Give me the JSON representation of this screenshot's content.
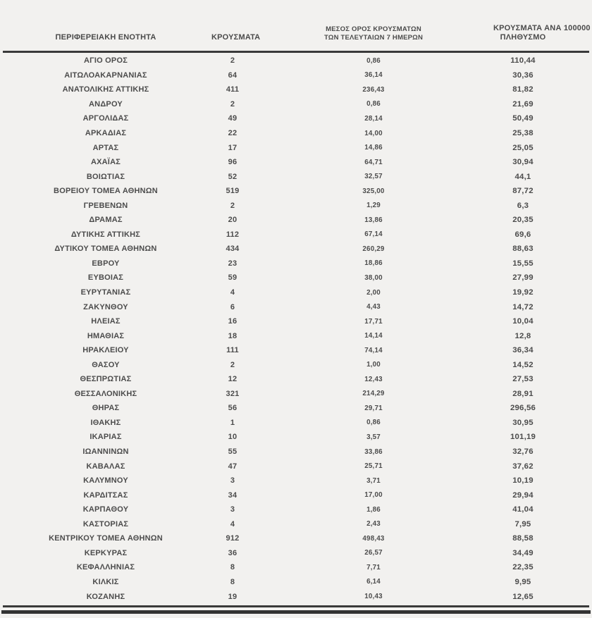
{
  "title": "cases-by-regional-unit-table",
  "colors": {
    "background": "#f2f1ef",
    "text": "#4a4a4a",
    "rule": "#3a3a3a"
  },
  "header": {
    "col1": "ΠΕΡΙΦΕΡΕΙΑΚΗ ΕΝΟΤΗΤΑ",
    "col2": "ΚΡΟΥΣΜΑΤΑ",
    "col3_line1": "ΜΕΣΟΣ ΟΡΟΣ ΚΡΟΥΣΜΑΤΩΝ",
    "col3_line2": "ΤΩΝ ΤΕΛΕΥΤΑΙΩΝ 7 ΗΜΕΡΩΝ",
    "col4_line1": "ΚΡΟΥΣΜΑΤΑ ΑΝΑ 100000",
    "col4_line2": "ΠΛΗΘΥΣΜΟ"
  },
  "chart_data": {
    "type": "table",
    "columns": [
      "ΠΕΡΙΦΕΡΕΙΑΚΗ ΕΝΟΤΗΤΑ",
      "ΚΡΟΥΣΜΑΤΑ",
      "ΜΕΣΟΣ ΟΡΟΣ ΚΡΟΥΣΜΑΤΩΝ ΤΩΝ ΤΕΛΕΥΤΑΙΩΝ 7 ΗΜΕΡΩΝ",
      "ΚΡΟΥΣΜΑΤΑ ΑΝΑ 100000 ΠΛΗΘΥΣΜΟ"
    ],
    "rows": [
      [
        "ΑΓΙΟ ΟΡΟΣ",
        "2",
        "0,86",
        "110,44"
      ],
      [
        "ΑΙΤΩΛΟΑΚΑΡΝΑΝΙΑΣ",
        "64",
        "36,14",
        "30,36"
      ],
      [
        "ΑΝΑΤΟΛΙΚΗΣ ΑΤΤΙΚΗΣ",
        "411",
        "236,43",
        "81,82"
      ],
      [
        "ΑΝΔΡΟΥ",
        "2",
        "0,86",
        "21,69"
      ],
      [
        "ΑΡΓΟΛΙΔΑΣ",
        "49",
        "28,14",
        "50,49"
      ],
      [
        "ΑΡΚΑΔΙΑΣ",
        "22",
        "14,00",
        "25,38"
      ],
      [
        "ΑΡΤΑΣ",
        "17",
        "14,86",
        "25,05"
      ],
      [
        "ΑΧΑΪΑΣ",
        "96",
        "64,71",
        "30,94"
      ],
      [
        "ΒΟΙΩΤΙΑΣ",
        "52",
        "32,57",
        "44,1"
      ],
      [
        "ΒΟΡΕΙΟΥ ΤΟΜΕΑ ΑΘΗΝΩΝ",
        "519",
        "325,00",
        "87,72"
      ],
      [
        "ΓΡΕΒΕΝΩΝ",
        "2",
        "1,29",
        "6,3"
      ],
      [
        "ΔΡΑΜΑΣ",
        "20",
        "13,86",
        "20,35"
      ],
      [
        "ΔΥΤΙΚΗΣ ΑΤΤΙΚΗΣ",
        "112",
        "67,14",
        "69,6"
      ],
      [
        "ΔΥΤΙΚΟΥ ΤΟΜΕΑ ΑΘΗΝΩΝ",
        "434",
        "260,29",
        "88,63"
      ],
      [
        "ΕΒΡΟΥ",
        "23",
        "18,86",
        "15,55"
      ],
      [
        "ΕΥΒΟΙΑΣ",
        "59",
        "38,00",
        "27,99"
      ],
      [
        "ΕΥΡΥΤΑΝΙΑΣ",
        "4",
        "2,00",
        "19,92"
      ],
      [
        "ΖΑΚΥΝΘΟΥ",
        "6",
        "4,43",
        "14,72"
      ],
      [
        "ΗΛΕΙΑΣ",
        "16",
        "17,71",
        "10,04"
      ],
      [
        "ΗΜΑΘΙΑΣ",
        "18",
        "14,14",
        "12,8"
      ],
      [
        "ΗΡΑΚΛΕΙΟΥ",
        "111",
        "74,14",
        "36,34"
      ],
      [
        "ΘΑΣΟΥ",
        "2",
        "1,00",
        "14,52"
      ],
      [
        "ΘΕΣΠΡΩΤΙΑΣ",
        "12",
        "12,43",
        "27,53"
      ],
      [
        "ΘΕΣΣΑΛΟΝΙΚΗΣ",
        "321",
        "214,29",
        "28,91"
      ],
      [
        "ΘΗΡΑΣ",
        "56",
        "29,71",
        "296,56"
      ],
      [
        "ΙΘΑΚΗΣ",
        "1",
        "0,86",
        "30,95"
      ],
      [
        "ΙΚΑΡΙΑΣ",
        "10",
        "3,57",
        "101,19"
      ],
      [
        "ΙΩΑΝΝΙΝΩΝ",
        "55",
        "33,86",
        "32,76"
      ],
      [
        "ΚΑΒΑΛΑΣ",
        "47",
        "25,71",
        "37,62"
      ],
      [
        "ΚΑΛΥΜΝΟΥ",
        "3",
        "3,71",
        "10,19"
      ],
      [
        "ΚΑΡΔΙΤΣΑΣ",
        "34",
        "17,00",
        "29,94"
      ],
      [
        "ΚΑΡΠΑΘΟΥ",
        "3",
        "1,86",
        "41,04"
      ],
      [
        "ΚΑΣΤΟΡΙΑΣ",
        "4",
        "2,43",
        "7,95"
      ],
      [
        "ΚΕΝΤΡΙΚΟΥ ΤΟΜΕΑ ΑΘΗΝΩΝ",
        "912",
        "498,43",
        "88,58"
      ],
      [
        "ΚΕΡΚΥΡΑΣ",
        "36",
        "26,57",
        "34,49"
      ],
      [
        "ΚΕΦΑΛΛΗΝΙΑΣ",
        "8",
        "7,71",
        "22,35"
      ],
      [
        "ΚΙΛΚΙΣ",
        "8",
        "6,14",
        "9,95"
      ],
      [
        "ΚΟΖΑΝΗΣ",
        "19",
        "10,43",
        "12,65"
      ]
    ]
  }
}
